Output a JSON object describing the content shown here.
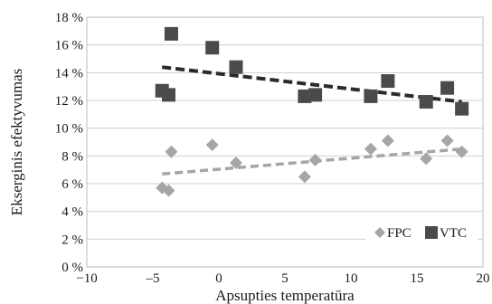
{
  "chart_data": {
    "type": "scatter",
    "title": "",
    "xlabel": "Apsupties temperatūra",
    "ylabel": "Ekserginis efektyvumas",
    "xlim": [
      -10,
      20
    ],
    "ylim": [
      0,
      18
    ],
    "x_ticks": [
      -10,
      -5,
      0,
      5,
      10,
      15,
      20
    ],
    "x_tick_labels": [
      "−10",
      "–5",
      "0",
      "5",
      "10",
      "15",
      "20"
    ],
    "y_ticks": [
      0,
      2,
      4,
      6,
      8,
      10,
      12,
      14,
      16,
      18
    ],
    "y_tick_labels": [
      "0 %",
      "2 %",
      "4 %",
      "6 %",
      "8 %",
      "10 %",
      "12 %",
      "14 %",
      "16 %",
      "18 %"
    ],
    "grid": "horizontal",
    "legend_position": "bottom-right",
    "series": [
      {
        "name": "FPC",
        "marker": "diamond",
        "color": "#a6a6a6",
        "points": [
          {
            "x": -4.3,
            "y": 5.7
          },
          {
            "x": -3.8,
            "y": 5.5
          },
          {
            "x": -3.6,
            "y": 8.3
          },
          {
            "x": -0.5,
            "y": 8.8
          },
          {
            "x": 1.3,
            "y": 7.5
          },
          {
            "x": 6.5,
            "y": 6.5
          },
          {
            "x": 7.3,
            "y": 7.7
          },
          {
            "x": 11.5,
            "y": 8.5
          },
          {
            "x": 12.8,
            "y": 9.1
          },
          {
            "x": 15.7,
            "y": 7.8
          },
          {
            "x": 17.3,
            "y": 9.1
          },
          {
            "x": 18.4,
            "y": 8.3
          }
        ],
        "trendline": {
          "x": [
            -4.3,
            18.4
          ],
          "y": [
            6.7,
            8.5
          ],
          "style": "dashed",
          "color": "#a6a6a6"
        }
      },
      {
        "name": "VTC",
        "marker": "square",
        "color": "#4a4a4a",
        "points": [
          {
            "x": -4.3,
            "y": 12.7
          },
          {
            "x": -3.8,
            "y": 12.4
          },
          {
            "x": -3.6,
            "y": 16.8
          },
          {
            "x": -0.5,
            "y": 15.8
          },
          {
            "x": 1.3,
            "y": 14.4
          },
          {
            "x": 6.5,
            "y": 12.3
          },
          {
            "x": 7.3,
            "y": 12.4
          },
          {
            "x": 11.5,
            "y": 12.3
          },
          {
            "x": 12.8,
            "y": 13.4
          },
          {
            "x": 15.7,
            "y": 11.9
          },
          {
            "x": 17.3,
            "y": 12.9
          },
          {
            "x": 18.4,
            "y": 11.4
          }
        ],
        "trendline": {
          "x": [
            -4.3,
            18.4
          ],
          "y": [
            14.4,
            11.9
          ],
          "style": "dashed",
          "color": "#2b2b2b"
        }
      }
    ]
  }
}
